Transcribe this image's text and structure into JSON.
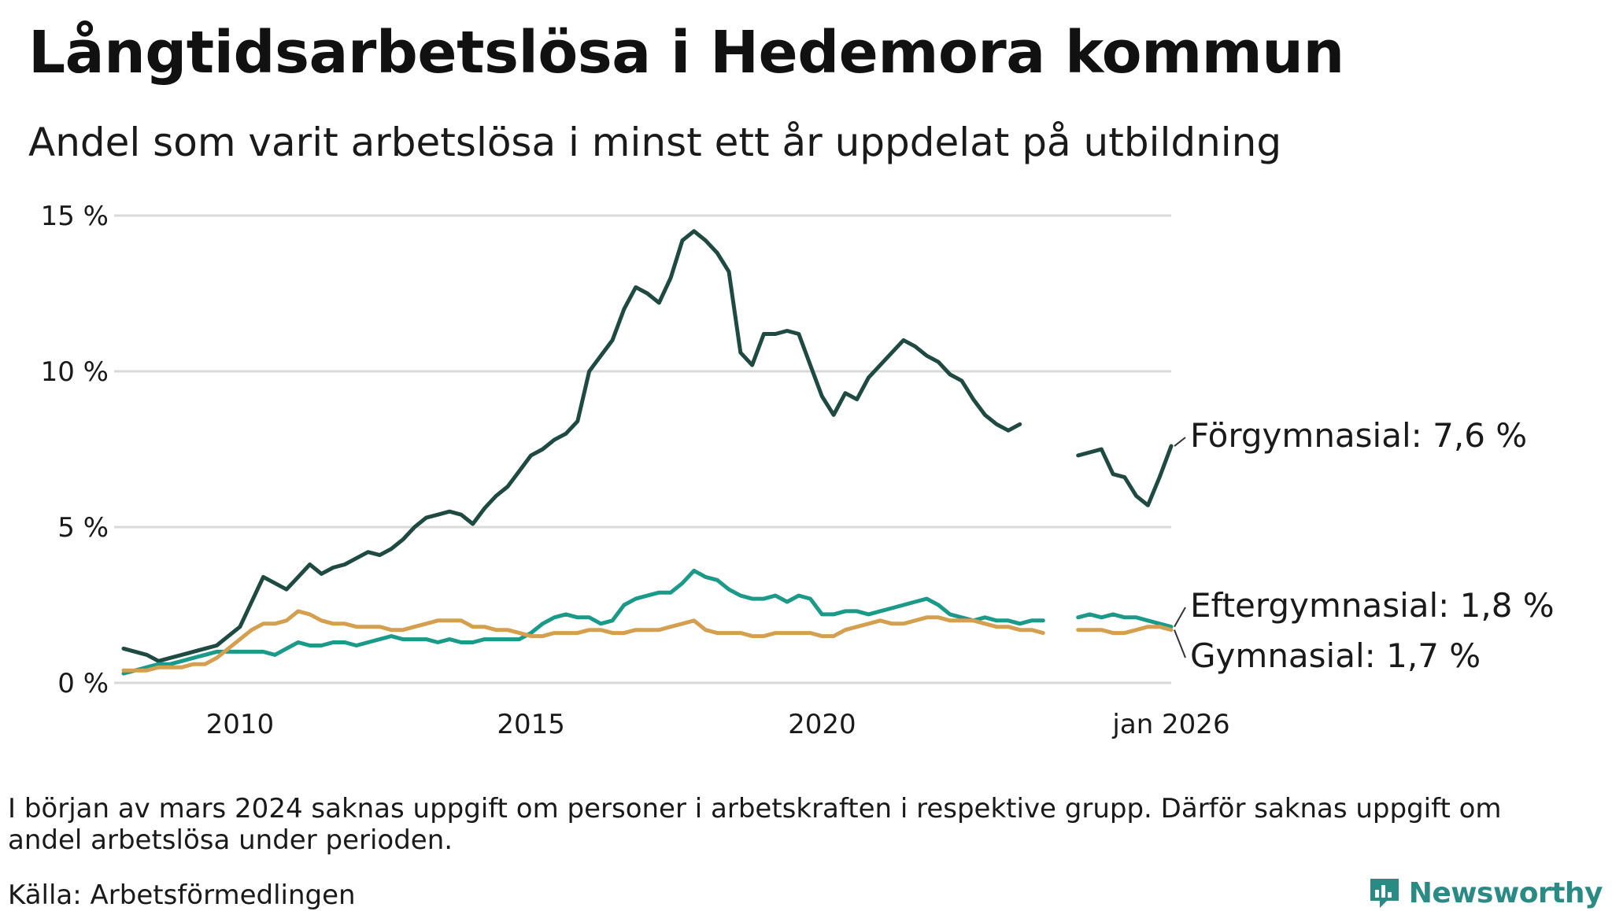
{
  "title": "Långtidsarbetslösa i Hedemora kommun",
  "subtitle": "Andel som varit arbetslösa i minst ett år uppdelat på utbildning",
  "note": "I början av mars 2024 saknas uppgift om personer i arbetskraften i respektive grupp. Därför saknas uppgift om andel arbetslösa under perioden.",
  "source": "Källa: Arbetsförmedlingen",
  "brand": {
    "name": "Newsworthy",
    "icon": "bar-chart-logo-icon",
    "color": "#2a8a84"
  },
  "chart_data": {
    "type": "line",
    "title": "Långtidsarbetslösa i Hedemora kommun",
    "xlabel": "",
    "ylabel": "",
    "xlim": [
      2008.0,
      2026.0
    ],
    "ylim": [
      0,
      15
    ],
    "yticks": [
      0,
      5,
      10,
      15
    ],
    "ytick_labels": [
      "0 %",
      "5 %",
      "10 %",
      "15 %"
    ],
    "xticks": [
      2010,
      2015,
      2020,
      2026.0
    ],
    "xtick_labels": [
      "2010",
      "2015",
      "2020",
      "jan 2026"
    ],
    "grid": true,
    "legend": "direct labels at line ends, right",
    "gap": {
      "from": 2023.8,
      "to": 2024.4,
      "reason": "missing data"
    },
    "series": [
      {
        "name": "Förgymnasial",
        "end_label": "Förgymnasial: 7,6 %",
        "color": "#1f4a42",
        "x": [
          2008.0,
          2008.2,
          2008.4,
          2008.6,
          2008.8,
          2009.0,
          2009.2,
          2009.4,
          2009.6,
          2009.8,
          2010.0,
          2010.2,
          2010.4,
          2010.6,
          2010.8,
          2011.0,
          2011.2,
          2011.4,
          2011.6,
          2011.8,
          2012.0,
          2012.2,
          2012.4,
          2012.6,
          2012.8,
          2013.0,
          2013.2,
          2013.4,
          2013.6,
          2013.8,
          2014.0,
          2014.2,
          2014.4,
          2014.6,
          2014.8,
          2015.0,
          2015.2,
          2015.4,
          2015.6,
          2015.8,
          2016.0,
          2016.2,
          2016.4,
          2016.6,
          2016.8,
          2017.0,
          2017.2,
          2017.4,
          2017.6,
          2017.8,
          2018.0,
          2018.2,
          2018.4,
          2018.6,
          2018.8,
          2019.0,
          2019.2,
          2019.4,
          2019.6,
          2019.8,
          2020.0,
          2020.2,
          2020.4,
          2020.6,
          2020.8,
          2021.0,
          2021.2,
          2021.4,
          2021.6,
          2021.8,
          2022.0,
          2022.2,
          2022.4,
          2022.6,
          2022.8,
          2023.0,
          2023.2,
          2023.4,
          2023.6,
          2023.8,
          null,
          2024.4,
          2024.6,
          2024.8,
          2025.0,
          2025.2,
          2025.4,
          2025.6,
          2025.8,
          2026.0
        ],
        "y": [
          1.1,
          1.0,
          0.9,
          0.7,
          0.8,
          0.9,
          1.0,
          1.1,
          1.2,
          1.5,
          1.8,
          2.6,
          3.4,
          3.2,
          3.0,
          3.4,
          3.8,
          3.5,
          3.7,
          3.8,
          4.0,
          4.2,
          4.1,
          4.3,
          4.6,
          5.0,
          5.3,
          5.4,
          5.5,
          5.4,
          5.1,
          5.6,
          6.0,
          6.3,
          6.8,
          7.3,
          7.5,
          7.8,
          8.0,
          8.4,
          10.0,
          10.5,
          11.0,
          12.0,
          12.7,
          12.5,
          12.2,
          13.0,
          14.2,
          14.5,
          14.2,
          13.8,
          13.2,
          10.6,
          10.2,
          11.2,
          11.2,
          11.3,
          11.2,
          10.2,
          9.2,
          8.6,
          9.3,
          9.1,
          9.8,
          10.2,
          10.6,
          11.0,
          10.8,
          10.5,
          10.3,
          9.9,
          9.7,
          9.1,
          8.6,
          8.3,
          8.1,
          8.3,
          null,
          null,
          null,
          7.3,
          7.4,
          7.5,
          6.7,
          6.6,
          6.0,
          5.7,
          6.6,
          7.6
        ]
      },
      {
        "name": "Eftergymnasial",
        "end_label": "Eftergymnasial: 1,8 %",
        "color": "#1b9a89",
        "x": [
          2008.0,
          2008.2,
          2008.4,
          2008.6,
          2008.8,
          2009.0,
          2009.2,
          2009.4,
          2009.6,
          2009.8,
          2010.0,
          2010.2,
          2010.4,
          2010.6,
          2010.8,
          2011.0,
          2011.2,
          2011.4,
          2011.6,
          2011.8,
          2012.0,
          2012.2,
          2012.4,
          2012.6,
          2012.8,
          2013.0,
          2013.2,
          2013.4,
          2013.6,
          2013.8,
          2014.0,
          2014.2,
          2014.4,
          2014.6,
          2014.8,
          2015.0,
          2015.2,
          2015.4,
          2015.6,
          2015.8,
          2016.0,
          2016.2,
          2016.4,
          2016.6,
          2016.8,
          2017.0,
          2017.2,
          2017.4,
          2017.6,
          2017.8,
          2018.0,
          2018.2,
          2018.4,
          2018.6,
          2018.8,
          2019.0,
          2019.2,
          2019.4,
          2019.6,
          2019.8,
          2020.0,
          2020.2,
          2020.4,
          2020.6,
          2020.8,
          2021.0,
          2021.2,
          2021.4,
          2021.6,
          2021.8,
          2022.0,
          2022.2,
          2022.4,
          2022.6,
          2022.8,
          2023.0,
          2023.2,
          2023.4,
          2023.6,
          2023.8,
          null,
          2024.4,
          2024.6,
          2024.8,
          2025.0,
          2025.2,
          2025.4,
          2025.6,
          2025.8,
          2026.0
        ],
        "y": [
          0.3,
          0.4,
          0.5,
          0.6,
          0.6,
          0.7,
          0.8,
          0.9,
          1.0,
          1.0,
          1.0,
          1.0,
          1.0,
          0.9,
          1.1,
          1.3,
          1.2,
          1.2,
          1.3,
          1.3,
          1.2,
          1.3,
          1.4,
          1.5,
          1.4,
          1.4,
          1.4,
          1.3,
          1.4,
          1.3,
          1.3,
          1.4,
          1.4,
          1.4,
          1.4,
          1.6,
          1.9,
          2.1,
          2.2,
          2.1,
          2.1,
          1.9,
          2.0,
          2.5,
          2.7,
          2.8,
          2.9,
          2.9,
          3.2,
          3.6,
          3.4,
          3.3,
          3.0,
          2.8,
          2.7,
          2.7,
          2.8,
          2.6,
          2.8,
          2.7,
          2.2,
          2.2,
          2.3,
          2.3,
          2.2,
          2.3,
          2.4,
          2.5,
          2.6,
          2.7,
          2.5,
          2.2,
          2.1,
          2.0,
          2.1,
          2.0,
          2.0,
          1.9,
          2.0,
          2.0,
          null,
          2.1,
          2.2,
          2.1,
          2.2,
          2.1,
          2.1,
          2.0,
          1.9,
          1.8
        ]
      },
      {
        "name": "Gymnasial",
        "end_label": "Gymnasial: 1,7 %",
        "color": "#d4a050",
        "x": [
          2008.0,
          2008.2,
          2008.4,
          2008.6,
          2008.8,
          2009.0,
          2009.2,
          2009.4,
          2009.6,
          2009.8,
          2010.0,
          2010.2,
          2010.4,
          2010.6,
          2010.8,
          2011.0,
          2011.2,
          2011.4,
          2011.6,
          2011.8,
          2012.0,
          2012.2,
          2012.4,
          2012.6,
          2012.8,
          2013.0,
          2013.2,
          2013.4,
          2013.6,
          2013.8,
          2014.0,
          2014.2,
          2014.4,
          2014.6,
          2014.8,
          2015.0,
          2015.2,
          2015.4,
          2015.6,
          2015.8,
          2016.0,
          2016.2,
          2016.4,
          2016.6,
          2016.8,
          2017.0,
          2017.2,
          2017.4,
          2017.6,
          2017.8,
          2018.0,
          2018.2,
          2018.4,
          2018.6,
          2018.8,
          2019.0,
          2019.2,
          2019.4,
          2019.6,
          2019.8,
          2020.0,
          2020.2,
          2020.4,
          2020.6,
          2020.8,
          2021.0,
          2021.2,
          2021.4,
          2021.6,
          2021.8,
          2022.0,
          2022.2,
          2022.4,
          2022.6,
          2022.8,
          2023.0,
          2023.2,
          2023.4,
          2023.6,
          2023.8,
          null,
          2024.4,
          2024.6,
          2024.8,
          2025.0,
          2025.2,
          2025.4,
          2025.6,
          2025.8,
          2026.0
        ],
        "y": [
          0.4,
          0.4,
          0.4,
          0.5,
          0.5,
          0.5,
          0.6,
          0.6,
          0.8,
          1.1,
          1.4,
          1.7,
          1.9,
          1.9,
          2.0,
          2.3,
          2.2,
          2.0,
          1.9,
          1.9,
          1.8,
          1.8,
          1.8,
          1.7,
          1.7,
          1.8,
          1.9,
          2.0,
          2.0,
          2.0,
          1.8,
          1.8,
          1.7,
          1.7,
          1.6,
          1.5,
          1.5,
          1.6,
          1.6,
          1.6,
          1.7,
          1.7,
          1.6,
          1.6,
          1.7,
          1.7,
          1.7,
          1.8,
          1.9,
          2.0,
          1.7,
          1.6,
          1.6,
          1.6,
          1.5,
          1.5,
          1.6,
          1.6,
          1.6,
          1.6,
          1.5,
          1.5,
          1.7,
          1.8,
          1.9,
          2.0,
          1.9,
          1.9,
          2.0,
          2.1,
          2.1,
          2.0,
          2.0,
          2.0,
          1.9,
          1.8,
          1.8,
          1.7,
          1.7,
          1.6,
          null,
          1.7,
          1.7,
          1.7,
          1.6,
          1.6,
          1.7,
          1.8,
          1.8,
          1.7
        ]
      }
    ]
  }
}
